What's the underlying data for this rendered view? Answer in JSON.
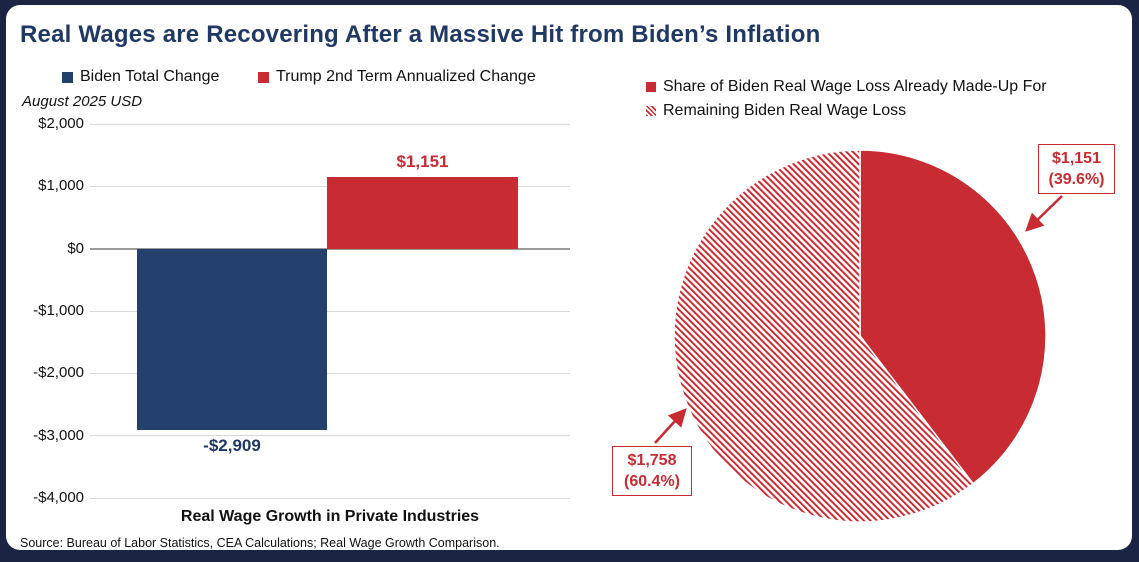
{
  "title": {
    "text": "Real Wages are Recovering After a Massive Hit from Biden’s Inflation"
  },
  "source": "Source: Bureau of Labor Statistics, CEA Calculations; Real Wage Growth Comparison.",
  "colors": {
    "title_navy": "#1F3864",
    "bar_navy": "#24416E",
    "red": "#C92B33",
    "frame_navy": "#1B2442",
    "gridline": "#D9D9D9",
    "zero_line": "#9B9B9B"
  },
  "chart_data": [
    {
      "type": "bar",
      "title": "Real Wage Growth in Private Industries",
      "unit_note": "August 2025 USD",
      "categories": [
        "Real Wage Growth in Private Industries"
      ],
      "series": [
        {
          "name": "Biden Total Change",
          "values": [
            -2909
          ],
          "data_label": "-$2,909",
          "color": "#24416E"
        },
        {
          "name": "Trump 2nd Term Annualized Change",
          "values": [
            1151
          ],
          "data_label": "$1,151",
          "color": "#C92B33"
        }
      ],
      "ylim": [
        -4000,
        2000
      ],
      "yticks": [
        {
          "value": 2000,
          "label": "$2,000"
        },
        {
          "value": 1000,
          "label": "$1,000"
        },
        {
          "value": 0,
          "label": "$0"
        },
        {
          "value": -1000,
          "label": "-$1,000"
        },
        {
          "value": -2000,
          "label": "-$2,000"
        },
        {
          "value": -3000,
          "label": "-$3,000"
        },
        {
          "value": -4000,
          "label": "-$4,000"
        }
      ],
      "grid": true,
      "legend_position": "top"
    },
    {
      "type": "pie",
      "start_angle_deg": 0,
      "direction": "clockwise",
      "slices": [
        {
          "name": "Share of Biden Real Wage Loss Already Made-Up For",
          "value": 1151,
          "pct": 39.6,
          "label_value": "$1,151",
          "label_pct": "(39.6%)",
          "style": "solid"
        },
        {
          "name": "Remaining Biden Real Wage Loss",
          "value": 1758,
          "pct": 60.4,
          "label_value": "$1,758",
          "label_pct": "(60.4%)",
          "style": "hatched"
        }
      ],
      "legend_position": "top"
    }
  ]
}
